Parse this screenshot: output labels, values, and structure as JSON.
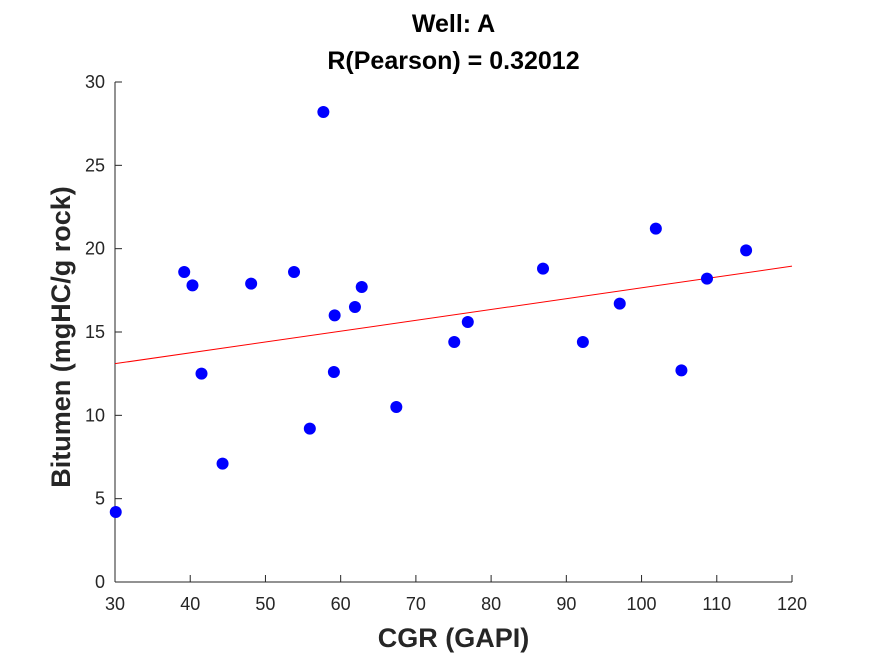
{
  "chart_data": {
    "type": "scatter",
    "title_lines": [
      "Well: A",
      "R(Pearson) = 0.32012"
    ],
    "xlabel": "CGR (GAPI)",
    "ylabel": "Bitumen (mgHC/g rock)",
    "xlim": [
      30,
      120
    ],
    "ylim": [
      0,
      30
    ],
    "xticks": [
      30,
      40,
      50,
      60,
      70,
      80,
      90,
      100,
      110,
      120
    ],
    "yticks": [
      0,
      5,
      10,
      15,
      20,
      25,
      30
    ],
    "grid": false,
    "marker_color": "#0000ff",
    "fit_line_color": "#ff0000",
    "points": [
      {
        "x": 30.1,
        "y": 4.2
      },
      {
        "x": 39.2,
        "y": 18.6
      },
      {
        "x": 40.3,
        "y": 17.8
      },
      {
        "x": 41.5,
        "y": 12.5
      },
      {
        "x": 44.3,
        "y": 7.1
      },
      {
        "x": 48.1,
        "y": 17.9
      },
      {
        "x": 53.8,
        "y": 18.6
      },
      {
        "x": 55.9,
        "y": 9.2
      },
      {
        "x": 57.7,
        "y": 28.2
      },
      {
        "x": 59.2,
        "y": 16.0
      },
      {
        "x": 59.1,
        "y": 12.6
      },
      {
        "x": 61.9,
        "y": 16.5
      },
      {
        "x": 62.8,
        "y": 17.7
      },
      {
        "x": 67.4,
        "y": 10.5
      },
      {
        "x": 75.1,
        "y": 14.4
      },
      {
        "x": 76.9,
        "y": 15.6
      },
      {
        "x": 86.9,
        "y": 18.8
      },
      {
        "x": 92.2,
        "y": 14.4
      },
      {
        "x": 97.1,
        "y": 16.7
      },
      {
        "x": 101.9,
        "y": 21.2
      },
      {
        "x": 105.3,
        "y": 12.7
      },
      {
        "x": 108.7,
        "y": 18.2
      },
      {
        "x": 113.9,
        "y": 19.9
      }
    ],
    "fit_line": [
      {
        "x": 30,
        "y": 13.1
      },
      {
        "x": 120,
        "y": 18.95
      }
    ]
  }
}
